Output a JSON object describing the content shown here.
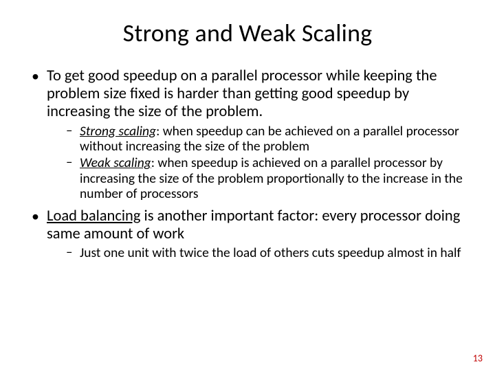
{
  "colors": {
    "background": "#ffffff",
    "text": "#000000",
    "page_number": "#c00000"
  },
  "typography": {
    "title_fontsize": 36,
    "lvl1_fontsize": 22.5,
    "lvl2_fontsize": 19.5,
    "page_num_fontsize": 14,
    "font_family": "Calibri"
  },
  "title": "Strong and Weak Scaling",
  "bullets": {
    "b1": {
      "text": "To get good speedup on a parallel processor while keeping the problem size fixed is harder than getting good speedup by increasing the size of the problem.",
      "sub": {
        "s1_term": "Strong scaling",
        "s1_rest": ": when speedup can be achieved on a parallel processor without increasing the size of the problem",
        "s2_term": "Weak scaling",
        "s2_rest": ": when speedup is achieved on a parallel processor by increasing the size of the problem proportionally to the increase in the number of processors"
      }
    },
    "b2": {
      "lead": "Load balancing",
      "rest": " is another important factor: every processor doing same amount of work",
      "sub": {
        "s1": "Just one unit with twice the load of others cuts speedup almost in half"
      }
    }
  },
  "page_number": "13"
}
